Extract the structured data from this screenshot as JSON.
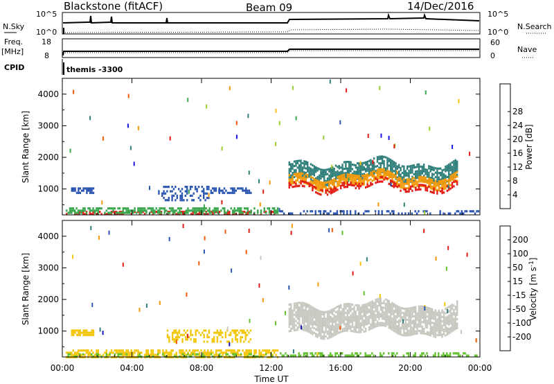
{
  "header": {
    "station": "Blackstone (fitACF)",
    "beam": "Beam 09",
    "date": "14/Dec/2016"
  },
  "summary_panels": {
    "nsky_label": "N.Sky",
    "nsearch_label": "N.Search",
    "nsky_ticks": [
      "10^5",
      "10^0"
    ],
    "nsearch_ticks": [
      "10^5",
      "10^0"
    ],
    "freq_label": "Freq.",
    "freq_unit": "[MHz]",
    "freq_ticks": [
      "18",
      "8"
    ],
    "nave_label": "Nave",
    "nave_ticks": [
      "60",
      "0"
    ],
    "cpid_label": "CPID",
    "cpid_value": "themis -3300"
  },
  "chart_data": [
    {
      "type": "heatmap",
      "name": "power",
      "ylabel": "Slant Range [km]",
      "ylim": [
        180,
        4500
      ],
      "yticks": [
        1000,
        2000,
        3000,
        4000
      ],
      "xlim": [
        0,
        24
      ],
      "colorbar": {
        "label": "Power [dB]",
        "ticks": [
          "4",
          "8",
          "12",
          "16",
          "20",
          "24",
          "28"
        ],
        "colors": [
          "#1414e6",
          "#2a55b0",
          "#2f7f7a",
          "#3aa64e",
          "#9ccc2f",
          "#f2c60b",
          "#f39a0a",
          "#f05a0a",
          "#e21a14"
        ]
      },
      "regions": [
        {
          "t0": 0.2,
          "t1": 12.4,
          "r0": 190,
          "r1": 310,
          "color": "#e21a14",
          "density": 0.5
        },
        {
          "t0": 0.2,
          "t1": 12.4,
          "r0": 250,
          "r1": 420,
          "color": "#3aa64e",
          "density": 0.6
        },
        {
          "t0": 0.5,
          "t1": 1.8,
          "r0": 850,
          "r1": 1050,
          "color": "#2a55b0",
          "density": 0.75
        },
        {
          "t0": 5.5,
          "t1": 8.5,
          "r0": 650,
          "r1": 1100,
          "color": "#2a55b0",
          "density": 0.3
        },
        {
          "t0": 8.5,
          "t1": 10.8,
          "r0": 900,
          "r1": 1050,
          "color": "#2a55b0",
          "density": 0.6
        },
        {
          "t0": 13.0,
          "t1": 22.7,
          "r0": 1350,
          "r1": 1850,
          "color": "#2f7f7a",
          "density": 0.75
        },
        {
          "t0": 13.0,
          "t1": 22.7,
          "r0": 1150,
          "r1": 1450,
          "color": "#f39a0a",
          "density": 0.8
        },
        {
          "t0": 13.0,
          "t1": 22.7,
          "r0": 1000,
          "r1": 1200,
          "color": "#e21a14",
          "density": 0.55
        },
        {
          "t0": 12.5,
          "t1": 23.9,
          "r0": 190,
          "r1": 330,
          "color": "#2a55b0",
          "density": 0.4
        }
      ]
    },
    {
      "type": "heatmap",
      "name": "velocity",
      "xlabel": "Time UT",
      "ylabel": "Slant Range [km]",
      "ylim": [
        180,
        4500
      ],
      "yticks": [
        1000,
        2000,
        3000,
        4000
      ],
      "xlim": [
        0,
        24
      ],
      "xticks": [
        "00:00",
        "04:00",
        "08:00",
        "12:00",
        "16:00",
        "20:00",
        "00:00"
      ],
      "colorbar": {
        "label": "Velocity [m s^-1]",
        "ticks": [
          "200",
          "100",
          "50",
          "15",
          "-15",
          "-50",
          "-100",
          "-200"
        ],
        "colors": [
          "#1414b4",
          "#2a55b0",
          "#2f7f7a",
          "#62c22e",
          "#c8c8c0",
          "#f2c60b",
          "#f39a0a",
          "#f05a0a",
          "#e21a14"
        ]
      },
      "regions": [
        {
          "t0": 0.2,
          "t1": 12.4,
          "r0": 190,
          "r1": 420,
          "color": "#f2c60b",
          "density": 0.65
        },
        {
          "t0": 0.2,
          "t1": 12.4,
          "r0": 190,
          "r1": 300,
          "color": "#62c22e",
          "density": 0.3
        },
        {
          "t0": 0.5,
          "t1": 1.8,
          "r0": 850,
          "r1": 1050,
          "color": "#f2c60b",
          "density": 0.75
        },
        {
          "t0": 6.0,
          "t1": 10.8,
          "r0": 650,
          "r1": 1050,
          "color": "#f2c60b",
          "density": 0.4
        },
        {
          "t0": 13.0,
          "t1": 22.7,
          "r0": 1000,
          "r1": 1850,
          "color": "#c8c8c0",
          "density": 0.85
        },
        {
          "t0": 12.5,
          "t1": 23.9,
          "r0": 190,
          "r1": 330,
          "color": "#62c22e",
          "density": 0.4
        }
      ]
    }
  ]
}
